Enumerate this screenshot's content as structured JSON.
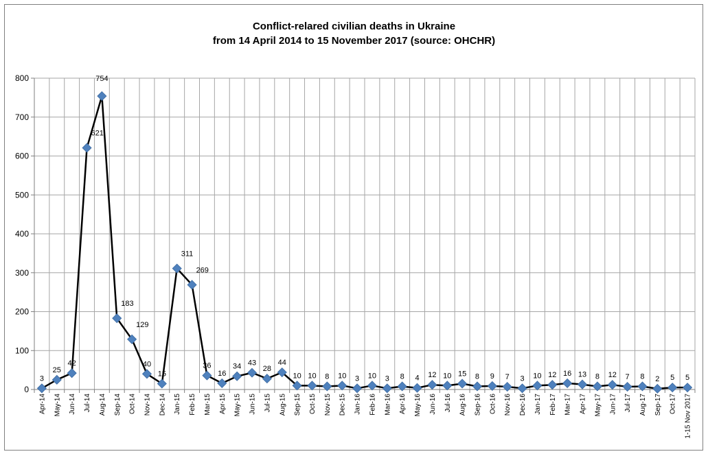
{
  "chart_data": {
    "type": "line",
    "title_line1": "Conflict-relared civilian deaths in Ukraine",
    "title_line2": "from 14 April 2014 to 15 November 2017 (source: OHCHR)",
    "xlabel": "",
    "ylabel": "",
    "ylim": [
      0,
      800
    ],
    "yticks": [
      "0",
      "100",
      "200",
      "300",
      "400",
      "500",
      "600",
      "700",
      "800"
    ],
    "grid": true,
    "legend": "none",
    "categories": [
      "Apr-14",
      "May-14",
      "Jun-14",
      "Jul-14",
      "Aug-14",
      "Sep-14",
      "Oct-14",
      "Nov-14",
      "Dec-14",
      "Jan-15",
      "Feb-15",
      "Mar-15",
      "Apr-15",
      "May-15",
      "Jun-15",
      "Jul-15",
      "Aug-15",
      "Sep-15",
      "Oct-15",
      "Nov-15",
      "Dec-15",
      "Jan-16",
      "Feb-16",
      "Mar-16",
      "Apr-16",
      "May-16",
      "Jun-16",
      "Jul-16",
      "Aug-16",
      "Sep-16",
      "Oct-16",
      "Nov-16",
      "Dec-16",
      "Jan-17",
      "Feb-17",
      "Mar-17",
      "Apr-17",
      "May-17",
      "Jun-17",
      "Jul-17",
      "Aug-17",
      "Sep-17",
      "Oct-17",
      "1-15 Nov 2017"
    ],
    "series": [
      {
        "values": [
          3,
          25,
          42,
          621,
          754,
          183,
          129,
          40,
          15,
          311,
          269,
          36,
          16,
          34,
          43,
          28,
          44,
          10,
          10,
          8,
          10,
          3,
          10,
          3,
          8,
          4,
          12,
          10,
          15,
          8,
          9,
          7,
          3,
          10,
          12,
          16,
          13,
          8,
          12,
          7,
          8,
          2,
          5,
          5
        ],
        "data_labels": [
          "3",
          "25",
          "42",
          "621",
          "754",
          "183",
          "129",
          "40",
          "15",
          "311",
          "269",
          "36",
          "16",
          "34",
          "43",
          "28",
          "44",
          "10",
          "10",
          "8",
          "10",
          "3",
          "10",
          "3",
          "8",
          "4",
          "12",
          "10",
          "15",
          "8",
          "9",
          "7",
          "3",
          "10",
          "12",
          "16",
          "13",
          "8",
          "12",
          "7",
          "8",
          "2",
          "5",
          "5"
        ]
      }
    ],
    "colors": {
      "line": "#000000",
      "marker": "#4f81bd",
      "marker_stroke": "#3c6aa0",
      "grid": "#a6a6a6",
      "axis": "#7f7f7f"
    }
  }
}
